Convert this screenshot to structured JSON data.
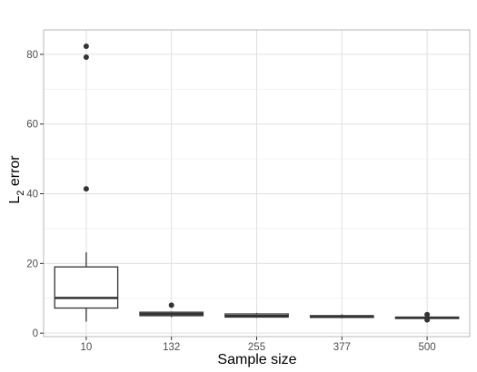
{
  "chart_data": {
    "type": "box",
    "xlabel": "Sample size",
    "ylabel_main": "L",
    "ylabel_sub": "2",
    "ylabel_rest": " error",
    "ylim": [
      -1,
      87
    ],
    "yticks": [
      0,
      20,
      40,
      60,
      80
    ],
    "yticks_minor": [
      10,
      30,
      50,
      70
    ],
    "grid": true,
    "categories": [
      "10",
      "132",
      "255",
      "377",
      "500"
    ],
    "boxes": [
      {
        "category": "10",
        "whisker_low": 3.3,
        "q1": 7.2,
        "median": 10.1,
        "q3": 19.0,
        "whisker_high": 23.2,
        "outliers": [
          41.4,
          79.2,
          82.3
        ]
      },
      {
        "category": "132",
        "whisker_low": 4.6,
        "q1": 5.0,
        "median": 5.5,
        "q3": 6.0,
        "whisker_high": 6.2,
        "outliers": [
          8.0
        ]
      },
      {
        "category": "255",
        "whisker_low": 4.4,
        "q1": 4.6,
        "median": 4.9,
        "q3": 5.5,
        "whisker_high": 5.8,
        "outliers": []
      },
      {
        "category": "377",
        "whisker_low": 4.3,
        "q1": 4.5,
        "median": 4.8,
        "q3": 5.0,
        "whisker_high": 5.4,
        "outliers": []
      },
      {
        "category": "500",
        "whisker_low": 4.0,
        "q1": 4.2,
        "median": 4.4,
        "q3": 4.6,
        "whisker_high": 4.8,
        "outliers": [
          3.8,
          5.3
        ]
      }
    ],
    "colors": {
      "grid_major": "#e0e0e0",
      "grid_minor": "#f0f0f0",
      "box": "#333333",
      "panel_border": "#b8b8b8"
    }
  }
}
